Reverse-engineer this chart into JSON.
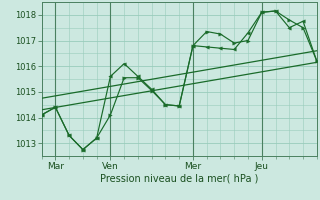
{
  "bg_color": "#cce8e0",
  "grid_color": "#99ccbb",
  "line_color": "#1a6b2a",
  "vline_color": "#4a8060",
  "title": "Pression niveau de la mer( hPa )",
  "ylabel_ticks": [
    1013,
    1014,
    1015,
    1016,
    1017,
    1018
  ],
  "xlim": [
    0,
    10.0
  ],
  "ylim": [
    1012.5,
    1018.5
  ],
  "day_ticks": [
    0.5,
    2.5,
    5.5,
    8.0
  ],
  "day_labels": [
    "Mar",
    "Ven",
    "Mer",
    "Jeu"
  ],
  "day_vlines": [
    0.5,
    2.5,
    5.5,
    8.0
  ],
  "line1_x": [
    0.0,
    0.5,
    1.0,
    1.5,
    2.0,
    2.5,
    3.0,
    3.5,
    4.0,
    4.5,
    5.0,
    5.5,
    6.0,
    6.5,
    7.0,
    7.5,
    8.0,
    8.5,
    9.0,
    9.5,
    10.0
  ],
  "line1_y": [
    1014.1,
    1014.4,
    1013.3,
    1012.75,
    1013.2,
    1015.6,
    1016.1,
    1015.6,
    1015.1,
    1014.5,
    1014.45,
    1016.8,
    1016.75,
    1016.7,
    1016.65,
    1017.3,
    1018.1,
    1018.15,
    1017.5,
    1017.75,
    1016.2
  ],
  "line2_x": [
    0.0,
    0.5,
    1.0,
    1.5,
    2.0,
    2.5,
    3.0,
    3.5,
    4.0,
    4.5,
    5.0,
    5.5,
    6.0,
    6.5,
    7.0,
    7.5,
    8.0,
    8.5,
    9.0,
    9.5,
    10.0
  ],
  "line2_y": [
    1014.1,
    1014.4,
    1013.3,
    1012.75,
    1013.2,
    1014.1,
    1015.55,
    1015.55,
    1015.05,
    1014.5,
    1014.45,
    1016.8,
    1017.35,
    1017.25,
    1016.9,
    1017.0,
    1018.1,
    1018.15,
    1017.8,
    1017.5,
    1016.2
  ],
  "trend1_x": [
    0.0,
    10.0
  ],
  "trend1_y": [
    1014.3,
    1016.15
  ],
  "trend2_x": [
    0.0,
    10.0
  ],
  "trend2_y": [
    1014.75,
    1016.6
  ]
}
